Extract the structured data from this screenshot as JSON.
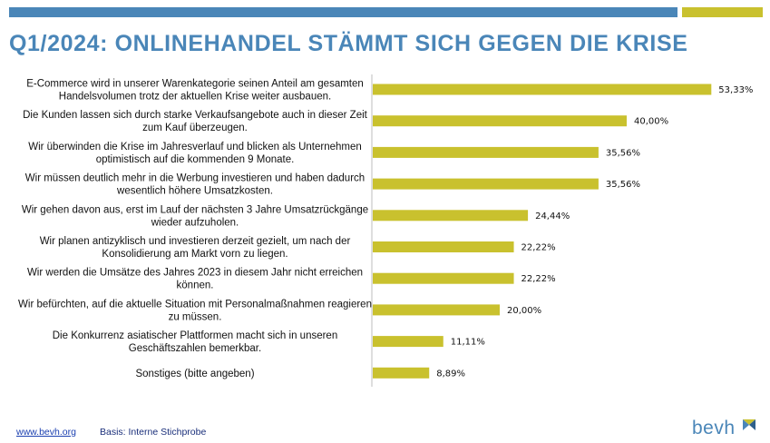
{
  "title": "Q1/2024: ONLINEHANDEL STÄMMT SICH GEGEN DIE KRISE",
  "colors": {
    "blue": "#4a86b8",
    "bar": "#c9c12e",
    "axis": "#bdbdbd"
  },
  "chart_data": {
    "type": "bar",
    "orientation": "horizontal",
    "categories": [
      [
        "E-Commerce wird in unserer Warenkategorie seinen Anteil am gesamten",
        "Handelsvolumen trotz der aktuellen Krise weiter ausbauen."
      ],
      [
        "Die Kunden lassen sich durch starke Verkaufsangebote auch in dieser Zeit",
        "zum Kauf überzeugen."
      ],
      [
        "Wir überwinden die Krise im Jahresverlauf und blicken als Unternehmen",
        "optimistisch auf die kommenden 9 Monate."
      ],
      [
        "Wir müssen deutlich mehr in die Werbung investieren und haben dadurch",
        "wesentlich höhere Umsatzkosten."
      ],
      [
        "Wir gehen davon aus, erst im Lauf der nächsten 3 Jahre Umsatzrückgänge",
        "wieder aufzuholen."
      ],
      [
        "Wir planen antizyklisch und investieren derzeit gezielt, um nach der",
        "Konsolidierung am Markt vorn zu liegen."
      ],
      [
        "Wir werden die Umsätze des Jahres 2023 in diesem Jahr nicht erreichen",
        "können."
      ],
      [
        "Wir befürchten, auf die aktuelle Situation mit Personalmaßnahmen reagieren",
        "zu müssen."
      ],
      [
        "Die Konkurrenz asiatischer Plattformen macht sich in unseren",
        "Geschäftszahlen bemerkbar."
      ],
      [
        "Sonstiges (bitte angeben)"
      ]
    ],
    "values": [
      53.33,
      40.0,
      35.56,
      35.56,
      24.44,
      22.22,
      22.22,
      20.0,
      11.11,
      8.89
    ],
    "value_labels": [
      "53,33%",
      "40,00%",
      "35,56%",
      "35,56%",
      "24,44%",
      "22,22%",
      "22,22%",
      "20,00%",
      "11,11%",
      "8,89%"
    ],
    "xlim": [
      0,
      60
    ],
    "grid": false
  },
  "footer": {
    "link": "www.bevh.org",
    "basis": "Basis: Interne Stichprobe"
  },
  "logo": {
    "text": "bevh"
  }
}
